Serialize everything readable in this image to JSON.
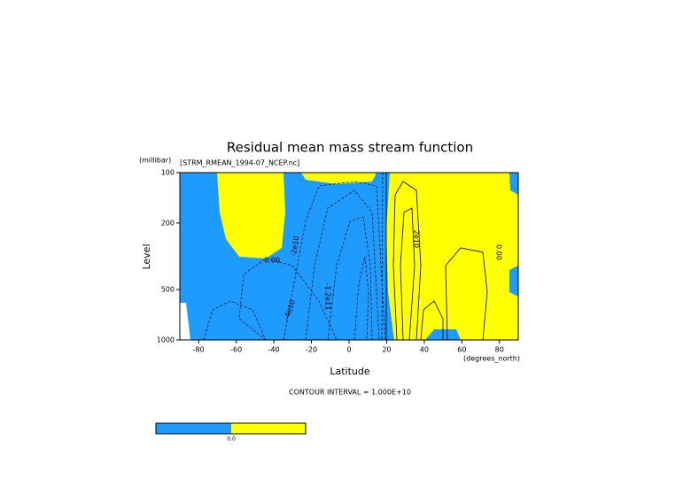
{
  "chart_data": {
    "type": "contour",
    "title": "Residual mean mass stream function",
    "subtitle": "[STRM_RMEAN_1994-07_NCEP.nc]",
    "y_unit_label": "(millibar)",
    "x_unit_label": "(degrees_north)",
    "xlabel": "Latitude",
    "ylabel": "Level",
    "footer": "CONTOUR INTERVAL = 1.000E+10",
    "xlim": [
      -90,
      90
    ],
    "xticks": [
      -80,
      -60,
      -40,
      -20,
      0,
      20,
      40,
      60,
      80
    ],
    "ylim": [
      100,
      1000
    ],
    "yticks": [
      100,
      200,
      500,
      1000
    ],
    "log_y": true,
    "fill_colors": [
      "#1e9bff",
      "#ffff00"
    ],
    "colorbar_labels": [
      "0.0"
    ],
    "annotations": [
      "0.00",
      "-2e10",
      "-1.2e11",
      "2e10",
      "0.00",
      "-4e10"
    ]
  }
}
